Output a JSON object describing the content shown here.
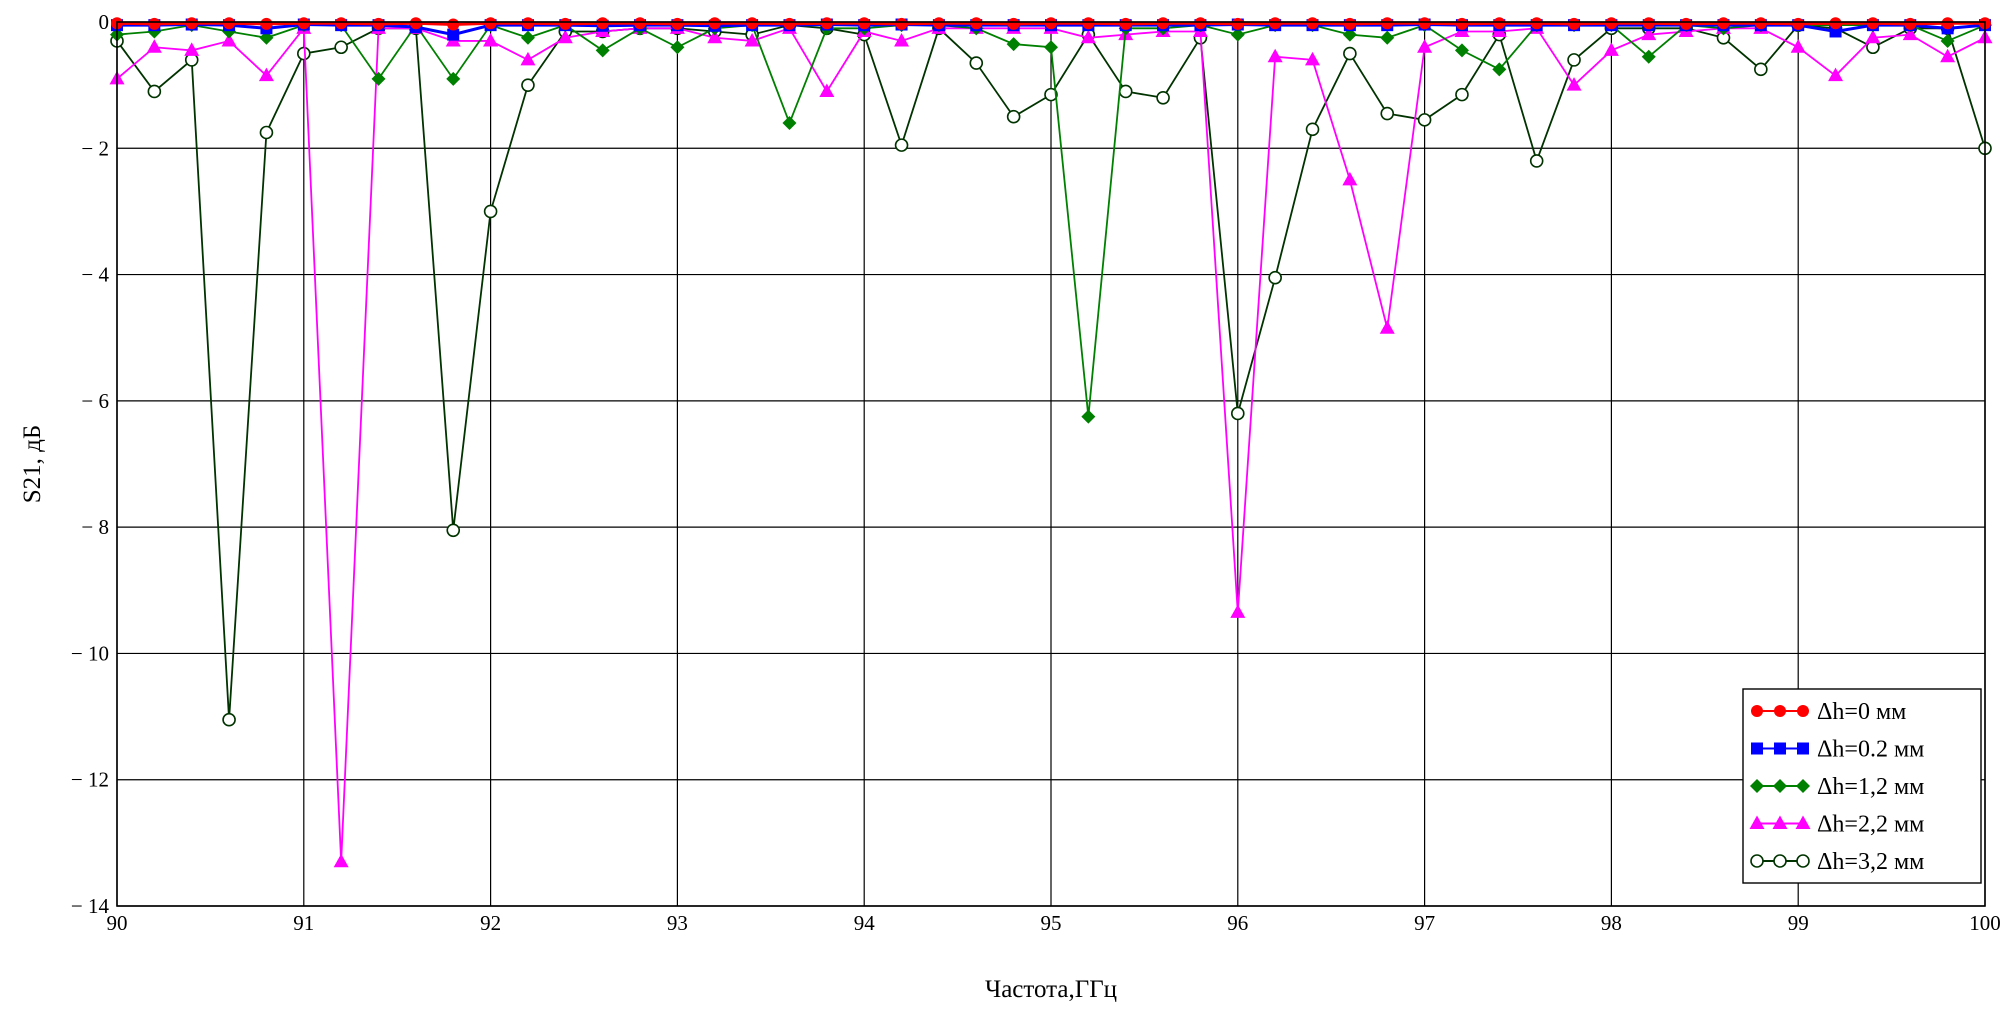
{
  "chart_data": {
    "type": "line",
    "xlabel": "Частота,ГГц",
    "ylabel": "S21, дБ",
    "xlim": [
      90,
      100
    ],
    "ylim": [
      -14,
      0
    ],
    "x_ticks": [
      90,
      91,
      92,
      93,
      94,
      95,
      96,
      97,
      98,
      99,
      100
    ],
    "y_ticks": [
      0,
      -2,
      -4,
      -6,
      -8,
      -10,
      -12,
      -14
    ],
    "y_tick_labels": [
      "0",
      "− 2",
      "− 4",
      "− 6",
      "− 8",
      "− 10",
      "− 12",
      "− 14"
    ],
    "grid": true,
    "legend_position": "bottom-right",
    "x": [
      90.0,
      90.2,
      90.4,
      90.6,
      90.8,
      91.0,
      91.2,
      91.4,
      91.6,
      91.8,
      92.0,
      92.2,
      92.4,
      92.6,
      92.8,
      93.0,
      93.2,
      93.4,
      93.6,
      93.8,
      94.0,
      94.2,
      94.4,
      94.6,
      94.8,
      95.0,
      95.2,
      95.4,
      95.6,
      95.8,
      96.0,
      96.2,
      96.4,
      96.6,
      96.8,
      97.0,
      97.2,
      97.4,
      97.6,
      97.8,
      98.0,
      98.2,
      98.4,
      98.6,
      98.8,
      99.0,
      99.2,
      99.4,
      99.6,
      99.8,
      100.0
    ],
    "series": [
      {
        "name": "Δh=0 мм",
        "color": "#ff0000",
        "marker": "circle-filled",
        "values": [
          -0.02,
          -0.03,
          -0.02,
          -0.02,
          -0.03,
          -0.02,
          -0.02,
          -0.03,
          -0.02,
          -0.04,
          -0.02,
          -0.02,
          -0.03,
          -0.02,
          -0.02,
          -0.03,
          -0.02,
          -0.02,
          -0.03,
          -0.02,
          -0.02,
          -0.03,
          -0.02,
          -0.02,
          -0.03,
          -0.02,
          -0.02,
          -0.03,
          -0.02,
          -0.02,
          -0.03,
          -0.02,
          -0.02,
          -0.03,
          -0.02,
          -0.02,
          -0.03,
          -0.02,
          -0.02,
          -0.03,
          -0.02,
          -0.02,
          -0.03,
          -0.02,
          -0.02,
          -0.03,
          -0.02,
          -0.02,
          -0.03,
          -0.02,
          -0.02
        ]
      },
      {
        "name": "Δh=0.2 мм",
        "color": "#0000ff",
        "marker": "square-filled",
        "values": [
          -0.05,
          -0.05,
          -0.04,
          -0.05,
          -0.1,
          -0.04,
          -0.05,
          -0.05,
          -0.08,
          -0.2,
          -0.05,
          -0.05,
          -0.05,
          -0.06,
          -0.05,
          -0.05,
          -0.06,
          -0.05,
          -0.05,
          -0.04,
          -0.05,
          -0.04,
          -0.05,
          -0.05,
          -0.05,
          -0.05,
          -0.05,
          -0.05,
          -0.05,
          -0.05,
          -0.04,
          -0.05,
          -0.05,
          -0.05,
          -0.05,
          -0.04,
          -0.05,
          -0.05,
          -0.05,
          -0.05,
          -0.05,
          -0.05,
          -0.05,
          -0.05,
          -0.05,
          -0.05,
          -0.15,
          -0.05,
          -0.05,
          -0.1,
          -0.05
        ]
      },
      {
        "name": "Δh=1,2 мм",
        "color": "#008000",
        "marker": "diamond-filled",
        "values": [
          -0.2,
          -0.15,
          -0.05,
          -0.15,
          -0.25,
          -0.05,
          -0.05,
          -0.9,
          -0.05,
          -0.9,
          -0.05,
          -0.25,
          -0.05,
          -0.45,
          -0.1,
          -0.4,
          -0.1,
          -0.05,
          -1.6,
          -0.1,
          -0.1,
          -0.05,
          -0.05,
          -0.1,
          -0.35,
          -0.4,
          -6.25,
          -0.1,
          -0.1,
          -0.05,
          -0.2,
          -0.05,
          -0.05,
          -0.2,
          -0.25,
          -0.05,
          -0.45,
          -0.75,
          -0.05,
          -0.05,
          -0.05,
          -0.55,
          -0.05,
          -0.1,
          -0.05,
          -0.05,
          -0.05,
          -0.05,
          -0.05,
          -0.3,
          -0.05
        ]
      },
      {
        "name": "Δh=2,2 мм",
        "color": "#ff00ff",
        "marker": "triangle-filled",
        "values": [
          -0.9,
          -0.4,
          -0.45,
          -0.3,
          -0.85,
          -0.1,
          -13.3,
          -0.1,
          -0.1,
          -0.3,
          -0.3,
          -0.6,
          -0.25,
          -0.15,
          -0.1,
          -0.1,
          -0.25,
          -0.3,
          -0.1,
          -1.1,
          -0.15,
          -0.3,
          -0.1,
          -0.1,
          -0.1,
          -0.1,
          -0.25,
          -0.2,
          -0.15,
          -0.15,
          -9.35,
          -0.55,
          -0.6,
          -2.5,
          -4.85,
          -0.4,
          -0.15,
          -0.15,
          -0.1,
          -1.0,
          -0.45,
          -0.2,
          -0.15,
          -0.1,
          -0.1,
          -0.4,
          -0.85,
          -0.25,
          -0.2,
          -0.55,
          -0.25
        ]
      },
      {
        "name": "Δh=3,2 мм",
        "color": "#003300",
        "marker": "circle-open",
        "values": [
          -0.3,
          -1.1,
          -0.6,
          -11.05,
          -1.75,
          -0.5,
          -0.4,
          -0.1,
          -0.1,
          -8.05,
          -3.0,
          -1.0,
          -0.15,
          -0.15,
          -0.1,
          -0.1,
          -0.15,
          -0.2,
          -0.05,
          -0.1,
          -0.2,
          -1.95,
          -0.1,
          -0.65,
          -1.5,
          -1.15,
          -0.2,
          -1.1,
          -1.2,
          -0.25,
          -6.2,
          -4.05,
          -1.7,
          -0.5,
          -1.45,
          -1.55,
          -1.15,
          -0.2,
          -2.2,
          -0.6,
          -0.1,
          -0.1,
          -0.1,
          -0.25,
          -0.75,
          -0.05,
          -0.1,
          -0.4,
          -0.1,
          -0.1,
          -2.0
        ]
      }
    ]
  }
}
